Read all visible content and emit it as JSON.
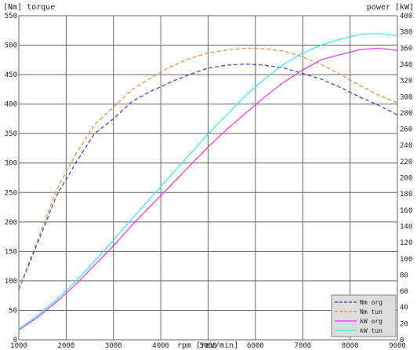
{
  "chart_data": {
    "type": "line",
    "left_axis_label": "[Nm] torque",
    "right_axis_label": "power [kW]",
    "xlabel": "rpm [rev/min]",
    "xlim": [
      1000,
      9000
    ],
    "xticks": [
      1000,
      2000,
      3000,
      4000,
      5000,
      6000,
      7000,
      8000,
      9000
    ],
    "ylim_left": [
      0,
      550
    ],
    "yticks_left": [
      0,
      50,
      100,
      150,
      200,
      250,
      300,
      350,
      400,
      450,
      500,
      550
    ],
    "ylim_right": [
      0,
      400
    ],
    "yticks_right": [
      0,
      20,
      40,
      60,
      80,
      100,
      120,
      140,
      160,
      180,
      200,
      220,
      240,
      260,
      280,
      300,
      320,
      340,
      360,
      380,
      400
    ],
    "grid": true,
    "legend_position": "bottom-right",
    "x": [
      1000,
      1400,
      1800,
      2200,
      2600,
      3000,
      3400,
      3800,
      4200,
      4600,
      5000,
      5400,
      5800,
      6200,
      6600,
      7000,
      7400,
      7800,
      8200,
      8600,
      9000
    ],
    "series": [
      {
        "name": "Nm org",
        "axis": "left",
        "color": "#3344cc",
        "dash": true,
        "values": [
          85,
          165,
          245,
          300,
          350,
          375,
          405,
          422,
          437,
          450,
          461,
          466,
          468,
          466,
          461,
          452,
          442,
          428,
          412,
          398,
          382
        ]
      },
      {
        "name": "Nm tun",
        "axis": "left",
        "color": "#ee8833",
        "dash": true,
        "values": [
          87,
          170,
          255,
          315,
          365,
          395,
          425,
          445,
          463,
          477,
          487,
          492,
          495,
          494,
          490,
          480,
          467,
          450,
          432,
          415,
          402
        ]
      },
      {
        "name": "kW org",
        "axis": "right",
        "color": "#ee33ee",
        "dash": false,
        "values": [
          12,
          28,
          47,
          68,
          92,
          116,
          142,
          166,
          190,
          214,
          238,
          260,
          280,
          300,
          318,
          333,
          346,
          352,
          358,
          360,
          357
        ]
      },
      {
        "name": "kW tun",
        "axis": "right",
        "color": "#33eeee",
        "dash": false,
        "values": [
          13,
          30,
          50,
          72,
          97,
          123,
          150,
          176,
          202,
          228,
          254,
          278,
          302,
          322,
          340,
          354,
          364,
          371,
          377,
          378,
          375
        ]
      }
    ]
  }
}
